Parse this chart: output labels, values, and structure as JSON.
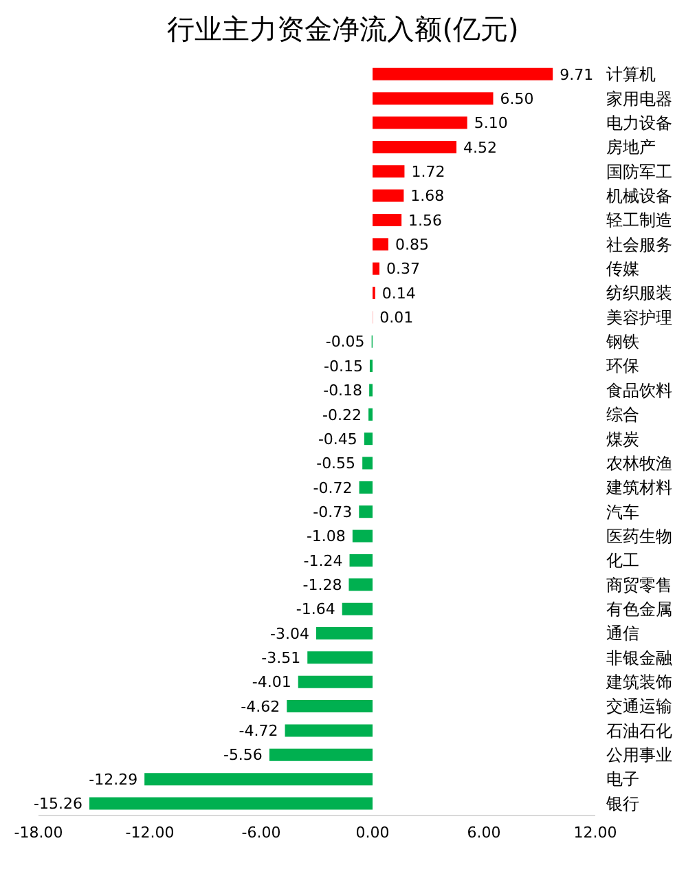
{
  "chart_data": {
    "type": "bar",
    "orientation": "horizontal",
    "title": "行业主力资金净流入额(亿元)",
    "categories": [
      "计算机",
      "家用电器",
      "电力设备",
      "房地产",
      "国防军工",
      "机械设备",
      "轻工制造",
      "社会服务",
      "传媒",
      "纺织服装",
      "美容护理",
      "钢铁",
      "环保",
      "食品饮料",
      "综合",
      "煤炭",
      "农林牧渔",
      "建筑材料",
      "汽车",
      "医药生物",
      "化工",
      "商贸零售",
      "有色金属",
      "通信",
      "非银金融",
      "建筑装饰",
      "交通运输",
      "石油石化",
      "公用事业",
      "电子",
      "银行"
    ],
    "values": [
      9.71,
      6.5,
      5.1,
      4.52,
      1.72,
      1.68,
      1.56,
      0.85,
      0.37,
      0.14,
      0.01,
      -0.05,
      -0.15,
      -0.18,
      -0.22,
      -0.45,
      -0.55,
      -0.72,
      -0.73,
      -1.08,
      -1.24,
      -1.28,
      -1.64,
      -3.04,
      -3.51,
      -4.01,
      -4.62,
      -4.72,
      -5.56,
      -12.29,
      -15.26
    ],
    "value_labels": [
      "9.71",
      "6.50",
      "5.10",
      "4.52",
      "1.72",
      "1.68",
      "1.56",
      "0.85",
      "0.37",
      "0.14",
      "0.01",
      "-0.05",
      "-0.15",
      "-0.18",
      "-0.22",
      "-0.45",
      "-0.55",
      "-0.72",
      "-0.73",
      "-1.08",
      "-1.24",
      "-1.28",
      "-1.64",
      "-3.04",
      "-3.51",
      "-4.01",
      "-4.62",
      "-4.72",
      "-5.56",
      "-12.29",
      "-15.26"
    ],
    "colors": [
      "#ff0000",
      "#ff0000",
      "#ff0000",
      "#ff0000",
      "#ff0000",
      "#ff0000",
      "#ff0000",
      "#ff0000",
      "#ff0000",
      "#ff0000",
      "#ff0000",
      "#00b050",
      "#00b050",
      "#00b050",
      "#00b050",
      "#00b050",
      "#00b050",
      "#00b050",
      "#00b050",
      "#00b050",
      "#00b050",
      "#00b050",
      "#00b050",
      "#00b050",
      "#00b050",
      "#00b050",
      "#00b050",
      "#00b050",
      "#00b050",
      "#00b050",
      "#00b050"
    ],
    "xlim": [
      -18,
      12
    ],
    "xticks": [
      {
        "value": -18,
        "label": "-18.00"
      },
      {
        "value": -12,
        "label": "-12.00"
      },
      {
        "value": -6,
        "label": "-6.00"
      },
      {
        "value": 0,
        "label": "0.00"
      },
      {
        "value": 6,
        "label": "6.00"
      },
      {
        "value": 12,
        "label": "12.00"
      }
    ],
    "grid": false
  }
}
